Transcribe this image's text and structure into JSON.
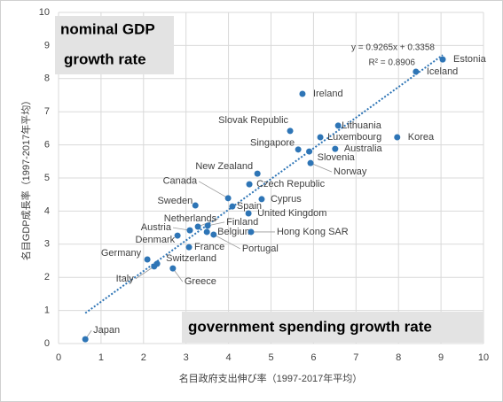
{
  "chart_data": {
    "type": "scatter",
    "xlabel": "名目政府支出伸び率（1997-2017年平均）",
    "ylabel": "名目GDP成長率（1997-2017年平均）",
    "annotations": [
      "nominal GDP",
      "growth rate",
      "government spending growth rate"
    ],
    "equation": "y = 0.9265x + 0.3358",
    "r_squared": "R² = 0.8906",
    "trendline": {
      "slope": 0.9265,
      "intercept": 0.3358
    },
    "color": "#2e75b6",
    "grid": true,
    "xlim": [
      0,
      10
    ],
    "xticks": [
      0,
      1,
      2,
      3,
      4,
      5,
      6,
      7,
      8,
      9,
      10
    ],
    "ylim": [
      0,
      10
    ],
    "yticks": [
      0,
      1,
      2,
      3,
      4,
      5,
      6,
      7,
      8,
      9,
      10
    ],
    "labels": [
      "Japan",
      "Estonia",
      "Iceland",
      "Ireland",
      "Slovak Republic",
      "Lithuania",
      "Luxembourg",
      "Korea",
      "Singapore",
      "Australia",
      "Slovenia",
      "Norway",
      "New Zealand",
      "Czech Republic",
      "Canada",
      "Sweden",
      "Spain",
      "Cyprus",
      "United Kingdom",
      "Netherlands",
      "Finland",
      "Austria",
      "Belgium",
      "Portugal",
      "Hong Kong SAR",
      "France",
      "Denmark",
      "Germany",
      "Switzerland",
      "Italy",
      "Greece"
    ],
    "x": [
      0.63,
      9.04,
      8.41,
      5.74,
      5.45,
      6.58,
      6.16,
      7.97,
      5.64,
      6.51,
      5.9,
      5.93,
      4.68,
      4.49,
      3.99,
      3.22,
      4.09,
      4.78,
      4.47,
      3.28,
      3.51,
      3.09,
      3.49,
      3.65,
      4.53,
      3.07,
      2.8,
      2.09,
      2.32,
      2.25,
      2.69
    ],
    "y": [
      0.13,
      8.58,
      8.21,
      7.54,
      6.42,
      6.58,
      6.23,
      6.23,
      5.86,
      5.88,
      5.8,
      5.45,
      5.13,
      4.81,
      4.39,
      4.17,
      4.14,
      4.36,
      3.93,
      3.53,
      3.56,
      3.42,
      3.37,
      3.29,
      3.37,
      2.91,
      3.26,
      2.54,
      2.41,
      2.33,
      2.27
    ]
  }
}
